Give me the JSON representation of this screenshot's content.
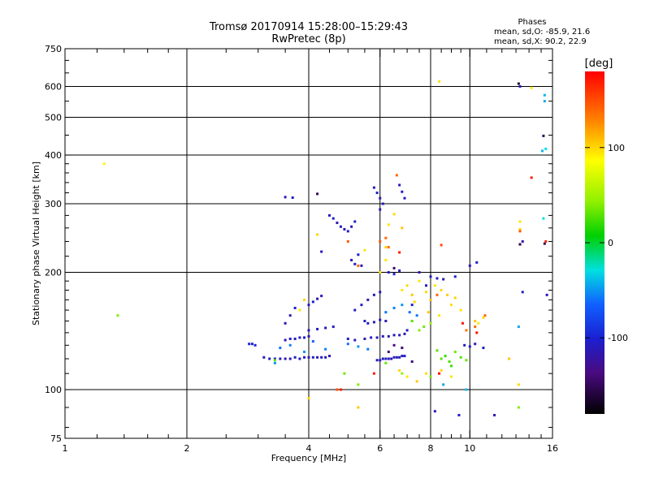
{
  "header": {
    "title_line1": "Tromsø 20170914 15:28:00–15:29:43",
    "title_line2": "RwPretec (8p)",
    "phase_label": "Phases",
    "phase_o": "mean, sd,O: -85.9, 21.6",
    "phase_x": "mean, sd,X:  90.2, 22.9"
  },
  "colorbar": {
    "label": "[deg]",
    "ticks": [
      "100",
      "0",
      "-100"
    ],
    "tick_values": [
      100,
      0,
      -100
    ],
    "range": [
      -180,
      180
    ]
  },
  "chart_data": {
    "type": "scatter",
    "xlabel": "Frequency [MHz]",
    "ylabel": "Stationary phase Virtual Height [km]",
    "xscale": "log",
    "yscale": "log",
    "xlim": [
      1,
      16
    ],
    "ylim": [
      75,
      750
    ],
    "xticks": [
      1,
      2,
      4,
      6,
      8,
      10,
      16
    ],
    "xtick_labels": [
      "1",
      "2",
      "4",
      "6",
      "8",
      "10",
      "16"
    ],
    "yticks": [
      75,
      100,
      200,
      300,
      400,
      500,
      600,
      750
    ],
    "ytick_labels": [
      "75",
      "100",
      "200",
      "300",
      "400",
      "500",
      "600",
      "750"
    ],
    "grid": true,
    "series": [
      {
        "points": [
          [
            3.1,
            121,
            -110
          ],
          [
            3.2,
            120,
            -105
          ],
          [
            3.3,
            120,
            -112
          ],
          [
            3.4,
            120,
            -108
          ],
          [
            3.5,
            120,
            -115
          ],
          [
            3.6,
            120,
            -110
          ],
          [
            3.7,
            121,
            -106
          ],
          [
            3.8,
            120,
            -112
          ],
          [
            3.9,
            121,
            -109
          ],
          [
            4.0,
            121,
            -114
          ],
          [
            4.1,
            121,
            -108
          ],
          [
            4.2,
            121,
            -112
          ],
          [
            4.3,
            121,
            -106
          ],
          [
            4.4,
            121,
            -110
          ],
          [
            4.5,
            122,
            -115
          ],
          [
            5.9,
            119,
            -110
          ],
          [
            6.0,
            119,
            -108
          ],
          [
            6.1,
            120,
            -112
          ],
          [
            6.2,
            120,
            -106
          ],
          [
            6.3,
            120,
            -110
          ],
          [
            6.4,
            120,
            -115
          ],
          [
            6.5,
            121,
            -108
          ],
          [
            6.6,
            121,
            -112
          ],
          [
            6.7,
            121,
            -106
          ],
          [
            6.8,
            122,
            -110
          ],
          [
            6.9,
            122,
            -104
          ],
          [
            2.85,
            131,
            -100
          ],
          [
            2.9,
            131,
            -104
          ],
          [
            2.95,
            130,
            -98
          ],
          [
            3.5,
            134,
            -110
          ],
          [
            3.6,
            135,
            -104
          ],
          [
            3.7,
            135,
            -112
          ],
          [
            3.8,
            136,
            -106
          ],
          [
            3.9,
            136,
            -110
          ],
          [
            4.0,
            137,
            -115
          ],
          [
            5.0,
            135,
            -110
          ],
          [
            5.2,
            134,
            -106
          ],
          [
            5.5,
            135,
            -112
          ],
          [
            5.7,
            136,
            -108
          ],
          [
            5.9,
            136,
            -114
          ],
          [
            6.1,
            137,
            -106
          ],
          [
            6.3,
            137,
            -110
          ],
          [
            6.5,
            138,
            -116
          ],
          [
            6.7,
            138,
            -108
          ],
          [
            6.9,
            139,
            -112
          ],
          [
            4.0,
            142,
            -110
          ],
          [
            4.2,
            143,
            -105
          ],
          [
            4.4,
            144,
            -112
          ],
          [
            4.6,
            145,
            -108
          ],
          [
            5.5,
            150,
            -110
          ],
          [
            5.6,
            148,
            -104
          ],
          [
            5.8,
            149,
            -112
          ],
          [
            6.0,
            151,
            -108
          ],
          [
            6.2,
            150,
            -114
          ],
          [
            3.5,
            148,
            -115
          ],
          [
            3.6,
            155,
            -110
          ],
          [
            3.7,
            162,
            -106
          ],
          [
            4.0,
            165,
            -110
          ],
          [
            4.1,
            168,
            -104
          ],
          [
            4.2,
            171,
            -112
          ],
          [
            4.3,
            174,
            -108
          ],
          [
            5.2,
            160,
            -110
          ],
          [
            5.4,
            165,
            -104
          ],
          [
            5.6,
            170,
            -112
          ],
          [
            5.8,
            175,
            -108
          ],
          [
            6.0,
            178,
            -114
          ],
          [
            4.5,
            280,
            -110
          ],
          [
            4.6,
            275,
            -105
          ],
          [
            4.7,
            268,
            -112
          ],
          [
            4.8,
            262,
            -108
          ],
          [
            4.9,
            258,
            -114
          ],
          [
            5.0,
            255,
            -106
          ],
          [
            5.1,
            262,
            -110
          ],
          [
            5.2,
            270,
            -104
          ],
          [
            5.8,
            330,
            -110
          ],
          [
            5.9,
            320,
            -104
          ],
          [
            6.0,
            310,
            -112
          ],
          [
            6.1,
            300,
            -108
          ],
          [
            6.0,
            290,
            -114
          ],
          [
            6.7,
            335,
            -110
          ],
          [
            6.8,
            322,
            -106
          ],
          [
            6.9,
            310,
            -112
          ],
          [
            5.1,
            215,
            -110
          ],
          [
            5.2,
            210,
            -104
          ],
          [
            5.4,
            208,
            -112
          ],
          [
            6.3,
            200,
            -110
          ],
          [
            6.5,
            198,
            -104
          ],
          [
            6.7,
            202,
            -112
          ],
          [
            3.5,
            312,
            -110
          ],
          [
            3.65,
            311,
            -106
          ],
          [
            8.0,
            195,
            -110
          ],
          [
            8.3,
            193,
            -106
          ],
          [
            8.6,
            192,
            -112
          ],
          [
            9.2,
            195,
            -104
          ],
          [
            10.0,
            208,
            -110
          ],
          [
            10.4,
            212,
            -106
          ],
          [
            9.7,
            130,
            -110
          ],
          [
            10.0,
            129,
            -104
          ],
          [
            10.3,
            131,
            -112
          ],
          [
            10.8,
            128,
            -106
          ],
          [
            4.3,
            226,
            -110
          ],
          [
            5.3,
            222,
            -104
          ],
          [
            13.3,
            600,
            -110
          ],
          [
            13.5,
            240,
            -115
          ],
          [
            13.5,
            178,
            -104
          ],
          [
            15.5,
            175,
            -110
          ],
          [
            7.5,
            200,
            -120
          ],
          [
            7.8,
            185,
            -110
          ],
          [
            7.2,
            165,
            -104
          ],
          [
            7.0,
            142,
            -112
          ],
          [
            8.2,
            88,
            -110
          ],
          [
            9.4,
            86,
            -106
          ],
          [
            11.5,
            86,
            -112
          ]
        ]
      },
      {
        "points": [
          [
            6.3,
            125,
            -140
          ],
          [
            6.5,
            130,
            -135
          ],
          [
            6.8,
            128,
            -145
          ],
          [
            7.2,
            118,
            -140
          ],
          [
            6.5,
            205,
            -145
          ],
          [
            13.2,
            610,
            -160
          ],
          [
            15.2,
            448,
            -150
          ],
          [
            13.3,
            236,
            -155
          ],
          [
            15.3,
            237,
            -150
          ],
          [
            4.2,
            318,
            -150
          ]
        ]
      },
      {
        "points": [
          [
            3.4,
            128,
            -60
          ],
          [
            3.6,
            130,
            -55
          ],
          [
            3.9,
            125,
            -50
          ],
          [
            4.1,
            133,
            -65
          ],
          [
            4.4,
            127,
            -55
          ],
          [
            5.0,
            131,
            -60
          ],
          [
            5.3,
            129,
            -50
          ],
          [
            5.6,
            127,
            -58
          ],
          [
            6.2,
            158,
            -60
          ],
          [
            6.5,
            162,
            -55
          ],
          [
            6.8,
            165,
            -50
          ],
          [
            7.1,
            158,
            -62
          ],
          [
            7.4,
            155,
            -58
          ],
          [
            15.3,
            570,
            -40
          ],
          [
            15.3,
            550,
            -45
          ],
          [
            15.4,
            415,
            -30
          ],
          [
            15.1,
            410,
            -40
          ],
          [
            15.2,
            275,
            -30
          ],
          [
            8.6,
            103,
            -45
          ],
          [
            9.8,
            100,
            -40
          ],
          [
            3.3,
            117,
            -50
          ],
          [
            13.2,
            145,
            -45
          ]
        ]
      },
      {
        "points": [
          [
            8.5,
            120,
            30
          ],
          [
            8.7,
            122,
            20
          ],
          [
            8.9,
            118,
            25
          ],
          [
            9.2,
            125,
            35
          ],
          [
            9.5,
            121,
            28
          ],
          [
            8.3,
            126,
            30
          ],
          [
            9.0,
            115,
            22
          ],
          [
            9.8,
            119,
            32
          ],
          [
            7.5,
            142,
            40
          ],
          [
            7.7,
            145,
            35
          ],
          [
            8.0,
            148,
            45
          ],
          [
            7.2,
            150,
            30
          ],
          [
            3.3,
            119,
            30
          ],
          [
            13.2,
            90,
            40
          ],
          [
            1.35,
            155,
            40
          ],
          [
            4.9,
            110,
            35
          ],
          [
            6.8,
            110,
            45
          ],
          [
            8.0,
            108,
            38
          ],
          [
            6.2,
            117,
            32
          ],
          [
            5.3,
            103,
            40
          ]
        ]
      },
      {
        "points": [
          [
            6.8,
            180,
            95
          ],
          [
            7.0,
            185,
            100
          ],
          [
            7.2,
            175,
            105
          ],
          [
            7.5,
            190,
            95
          ],
          [
            7.8,
            178,
            100
          ],
          [
            8.0,
            170,
            110
          ],
          [
            8.2,
            185,
            95
          ],
          [
            8.5,
            180,
            100
          ],
          [
            8.8,
            175,
            105
          ],
          [
            9.0,
            165,
            98
          ],
          [
            9.2,
            172,
            102
          ],
          [
            9.5,
            160,
            95
          ],
          [
            7.3,
            168,
            100
          ],
          [
            7.9,
            158,
            105
          ],
          [
            8.4,
            155,
            95
          ],
          [
            6.7,
            112,
            100
          ],
          [
            7.0,
            108,
            95
          ],
          [
            7.4,
            105,
            105
          ],
          [
            7.8,
            110,
            98
          ],
          [
            8.5,
            112,
            100
          ],
          [
            9.0,
            108,
            95
          ],
          [
            5.3,
            90,
            105
          ],
          [
            4.0,
            95,
            100
          ],
          [
            6.3,
            265,
            95
          ],
          [
            6.5,
            282,
            100
          ],
          [
            6.8,
            260,
            105
          ],
          [
            10.3,
            150,
            105
          ],
          [
            10.5,
            148,
            95
          ],
          [
            10.8,
            153,
            100
          ],
          [
            3.8,
            160,
            95
          ],
          [
            3.9,
            170,
            100
          ],
          [
            13.3,
            258,
            100
          ],
          [
            13.3,
            270,
            95
          ],
          [
            13.2,
            103,
            100
          ],
          [
            12.5,
            120,
            105
          ],
          [
            6.0,
            200,
            98
          ],
          [
            6.2,
            215,
            95
          ],
          [
            1.25,
            380,
            90
          ],
          [
            8.4,
            618,
            95
          ],
          [
            14.2,
            595,
            92
          ],
          [
            4.2,
            250,
            100
          ],
          [
            5.5,
            228,
            95
          ],
          [
            6.2,
            232,
            102
          ]
        ]
      },
      {
        "points": [
          [
            6.2,
            245,
            140
          ],
          [
            6.3,
            232,
            135
          ],
          [
            6.0,
            240,
            145
          ],
          [
            6.6,
            355,
            140
          ],
          [
            10.9,
            155,
            140
          ],
          [
            9.8,
            142,
            135
          ],
          [
            10.3,
            145,
            140
          ],
          [
            8.5,
            235,
            150
          ],
          [
            5.3,
            208,
            140
          ],
          [
            13.3,
            255,
            145
          ],
          [
            4.7,
            100,
            150
          ],
          [
            8.3,
            175,
            140
          ],
          [
            5.0,
            240,
            145
          ]
        ]
      },
      {
        "points": [
          [
            4.8,
            100,
            170
          ],
          [
            10.4,
            140,
            175
          ],
          [
            9.6,
            148,
            172
          ],
          [
            14.2,
            350,
            170
          ],
          [
            15.4,
            240,
            168
          ],
          [
            8.4,
            110,
            175
          ],
          [
            5.8,
            110,
            170
          ],
          [
            6.7,
            225,
            172
          ]
        ]
      }
    ]
  }
}
